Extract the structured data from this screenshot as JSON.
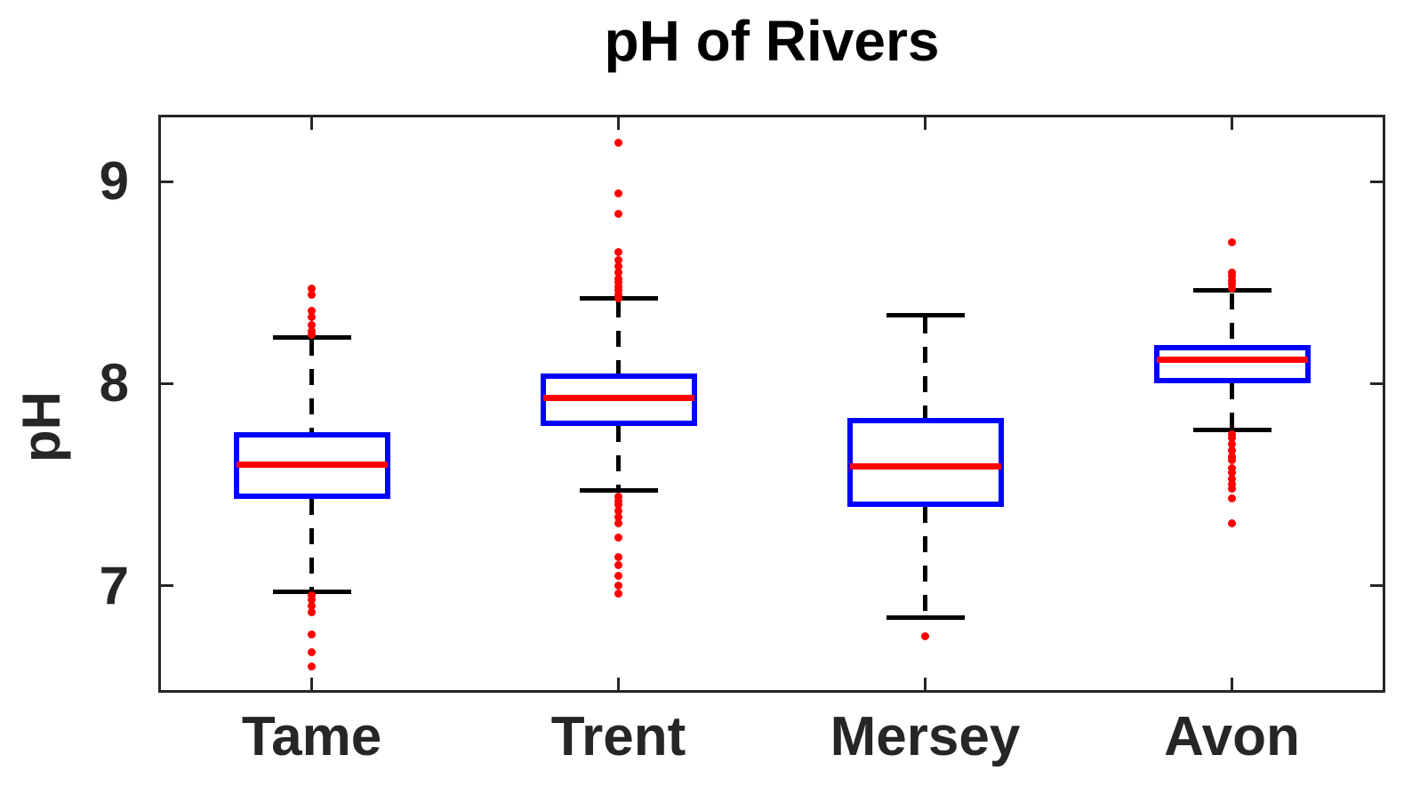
{
  "chart_data": {
    "type": "boxplot",
    "title": "pH of Rivers",
    "ylabel": "pH",
    "xlabel": "",
    "categories": [
      "Tame",
      "Trent",
      "Mersey",
      "Avon"
    ],
    "positions": [
      1,
      2,
      3,
      4
    ],
    "xlim": [
      0.5,
      4.5
    ],
    "ylim": [
      6.47,
      9.33
    ],
    "yticks": [
      7,
      8,
      9
    ],
    "grid": false,
    "legend": "none",
    "colors": {
      "box": "#0000ff",
      "median": "#ff0000",
      "whisker": "#000000",
      "outlier": "#ff0000",
      "axis": "#262626"
    },
    "series": [
      {
        "name": "Tame",
        "q1": 7.43,
        "median": 7.6,
        "q3": 7.76,
        "whisker_low": 6.97,
        "whisker_high": 8.23,
        "outliers_high": [
          8.24,
          8.26,
          8.29,
          8.33,
          8.36,
          8.44,
          8.47
        ],
        "outliers_low": [
          6.95,
          6.93,
          6.9,
          6.87,
          6.76,
          6.67,
          6.6
        ]
      },
      {
        "name": "Trent",
        "q1": 7.79,
        "median": 7.93,
        "q3": 8.05,
        "whisker_low": 7.47,
        "whisker_high": 8.42,
        "outliers_high": [
          8.42,
          8.44,
          8.46,
          8.48,
          8.5,
          8.52,
          8.55,
          8.58,
          8.61,
          8.65,
          8.84,
          8.94,
          9.19
        ],
        "outliers_low": [
          7.44,
          7.42,
          7.4,
          7.37,
          7.34,
          7.31,
          7.24,
          7.14,
          7.1,
          7.05,
          7.0,
          6.96
        ]
      },
      {
        "name": "Mersey",
        "q1": 7.39,
        "median": 7.59,
        "q3": 7.83,
        "whisker_low": 6.84,
        "whisker_high": 8.34,
        "outliers_high": [],
        "outliers_low": [
          6.75
        ]
      },
      {
        "name": "Avon",
        "q1": 8.0,
        "median": 8.12,
        "q3": 8.19,
        "whisker_low": 7.77,
        "whisker_high": 8.46,
        "outliers_high": [
          8.47,
          8.49,
          8.51,
          8.53,
          8.55,
          8.7
        ],
        "outliers_low": [
          7.75,
          7.73,
          7.7,
          7.67,
          7.64,
          7.62,
          7.58,
          7.56,
          7.53,
          7.5,
          7.48,
          7.43,
          7.31
        ]
      }
    ]
  }
}
